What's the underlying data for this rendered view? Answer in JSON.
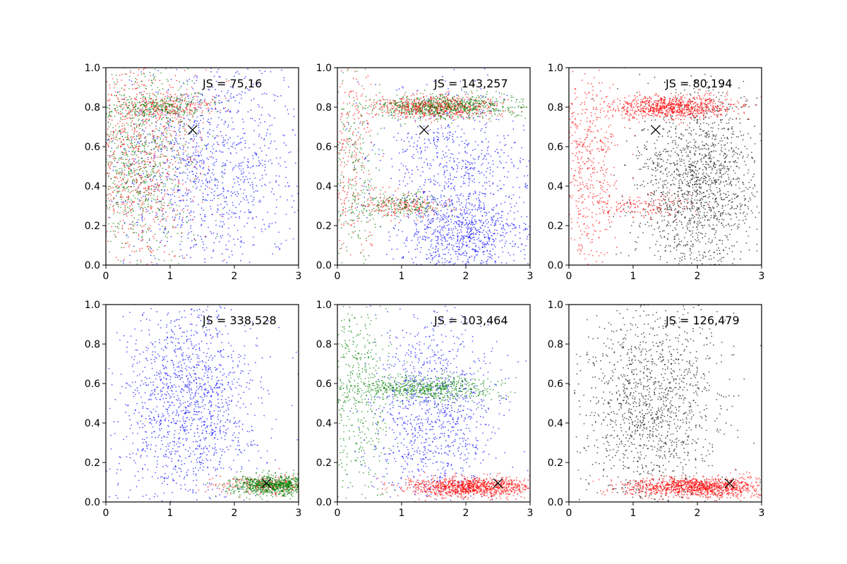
{
  "chart_data": [
    {
      "type": "scatter",
      "annotation": "JS = 75,16",
      "xlim": [
        0,
        3
      ],
      "ylim": [
        0,
        1
      ],
      "xticks": [
        "0",
        "1",
        "2",
        "3"
      ],
      "yticks": [
        "0.0",
        "0.2",
        "0.4",
        "0.6",
        "0.8",
        "1.0"
      ],
      "grid": false,
      "marker": {
        "x": 1.35,
        "y": 0.685,
        "shape": "x"
      },
      "series": [
        {
          "color": "#0000ff",
          "clusters": [
            {
              "cx": 1.6,
              "cy": 0.5,
              "sx": 0.75,
              "sy": 0.28,
              "n": 1300
            }
          ]
        },
        {
          "color": "#ff0000",
          "clusters": [
            {
              "cx": 0.5,
              "cy": 0.55,
              "sx": 0.45,
              "sy": 0.27,
              "n": 900
            },
            {
              "cx": 0.9,
              "cy": 0.8,
              "sx": 0.4,
              "sy": 0.03,
              "n": 250
            }
          ]
        },
        {
          "color": "#008000",
          "clusters": [
            {
              "cx": 0.5,
              "cy": 0.55,
              "sx": 0.45,
              "sy": 0.27,
              "n": 900
            },
            {
              "cx": 0.9,
              "cy": 0.8,
              "sx": 0.4,
              "sy": 0.03,
              "n": 250
            }
          ]
        }
      ]
    },
    {
      "type": "scatter",
      "annotation": "JS = 143,257",
      "xlim": [
        0,
        3
      ],
      "ylim": [
        0,
        1
      ],
      "xticks": [
        "0",
        "1",
        "2",
        "3"
      ],
      "yticks": [
        "0.0",
        "0.2",
        "0.4",
        "0.6",
        "0.8",
        "1.0"
      ],
      "grid": false,
      "marker": {
        "x": 1.35,
        "y": 0.685,
        "shape": "x"
      },
      "series": [
        {
          "color": "#0000ff",
          "clusters": [
            {
              "cx": 2.0,
              "cy": 0.15,
              "sx": 0.5,
              "sy": 0.1,
              "n": 800
            },
            {
              "cx": 1.8,
              "cy": 0.5,
              "sx": 0.65,
              "sy": 0.2,
              "n": 700
            }
          ]
        },
        {
          "color": "#ff0000",
          "clusters": [
            {
              "cx": 1.5,
              "cy": 0.8,
              "sx": 0.5,
              "sy": 0.03,
              "n": 700
            },
            {
              "cx": 1.0,
              "cy": 0.3,
              "sx": 0.35,
              "sy": 0.03,
              "n": 200
            },
            {
              "cx": 0.2,
              "cy": 0.5,
              "sx": 0.18,
              "sy": 0.28,
              "n": 250
            }
          ]
        },
        {
          "color": "#008000",
          "clusters": [
            {
              "cx": 1.7,
              "cy": 0.8,
              "sx": 0.6,
              "sy": 0.03,
              "n": 700
            },
            {
              "cx": 1.0,
              "cy": 0.3,
              "sx": 0.35,
              "sy": 0.03,
              "n": 200
            },
            {
              "cx": 0.25,
              "cy": 0.5,
              "sx": 0.2,
              "sy": 0.28,
              "n": 250
            }
          ]
        }
      ]
    },
    {
      "type": "scatter",
      "annotation": "JS = 80,194",
      "xlim": [
        0,
        3
      ],
      "ylim": [
        0,
        1
      ],
      "xticks": [
        "0",
        "1",
        "2",
        "3"
      ],
      "yticks": [
        "0.0",
        "0.2",
        "0.4",
        "0.6",
        "0.8",
        "1.0"
      ],
      "grid": false,
      "marker": {
        "x": 1.35,
        "y": 0.685,
        "shape": "x"
      },
      "series": [
        {
          "color": "#000000",
          "clusters": [
            {
              "cx": 2.0,
              "cy": 0.4,
              "sx": 0.5,
              "sy": 0.25,
              "n": 1600
            }
          ]
        },
        {
          "color": "#ff0000",
          "clusters": [
            {
              "cx": 1.6,
              "cy": 0.8,
              "sx": 0.45,
              "sy": 0.03,
              "n": 900
            },
            {
              "cx": 0.3,
              "cy": 0.5,
              "sx": 0.25,
              "sy": 0.28,
              "n": 550
            },
            {
              "cx": 1.2,
              "cy": 0.3,
              "sx": 0.35,
              "sy": 0.03,
              "n": 150
            }
          ]
        }
      ]
    },
    {
      "type": "scatter",
      "annotation": "JS = 338,528",
      "xlim": [
        0,
        3
      ],
      "ylim": [
        0,
        1
      ],
      "xticks": [
        "0",
        "1",
        "2",
        "3"
      ],
      "yticks": [
        "0.0",
        "0.2",
        "0.4",
        "0.6",
        "0.8",
        "1.0"
      ],
      "grid": false,
      "marker": {
        "x": 2.5,
        "y": 0.095,
        "shape": "x"
      },
      "series": [
        {
          "color": "#0000ff",
          "clusters": [
            {
              "cx": 1.3,
              "cy": 0.5,
              "sx": 0.55,
              "sy": 0.27,
              "n": 1500
            }
          ]
        },
        {
          "color": "#ff0000",
          "clusters": [
            {
              "cx": 2.5,
              "cy": 0.085,
              "sx": 0.4,
              "sy": 0.025,
              "n": 250
            }
          ]
        },
        {
          "color": "#008000",
          "clusters": [
            {
              "cx": 2.6,
              "cy": 0.085,
              "sx": 0.35,
              "sy": 0.025,
              "n": 900
            }
          ]
        }
      ]
    },
    {
      "type": "scatter",
      "annotation": "JS = 103,464",
      "xlim": [
        0,
        3
      ],
      "ylim": [
        0,
        1
      ],
      "xticks": [
        "0",
        "1",
        "2",
        "3"
      ],
      "yticks": [
        "0.0",
        "0.2",
        "0.4",
        "0.6",
        "0.8",
        "1.0"
      ],
      "grid": false,
      "marker": {
        "x": 2.5,
        "y": 0.095,
        "shape": "x"
      },
      "series": [
        {
          "color": "#0000ff",
          "clusters": [
            {
              "cx": 1.5,
              "cy": 0.45,
              "sx": 0.5,
              "sy": 0.25,
              "n": 1100
            }
          ]
        },
        {
          "color": "#008000",
          "clusters": [
            {
              "cx": 1.4,
              "cy": 0.575,
              "sx": 0.55,
              "sy": 0.03,
              "n": 650
            },
            {
              "cx": 0.3,
              "cy": 0.55,
              "sx": 0.25,
              "sy": 0.27,
              "n": 500
            }
          ]
        },
        {
          "color": "#ff0000",
          "clusters": [
            {
              "cx": 2.1,
              "cy": 0.075,
              "sx": 0.5,
              "sy": 0.025,
              "n": 1100
            }
          ]
        }
      ]
    },
    {
      "type": "scatter",
      "annotation": "JS = 126,479",
      "xlim": [
        0,
        3
      ],
      "ylim": [
        0,
        1
      ],
      "xticks": [
        "0",
        "1",
        "2",
        "3"
      ],
      "yticks": [
        "0.0",
        "0.2",
        "0.4",
        "0.6",
        "0.8",
        "1.0"
      ],
      "grid": false,
      "marker": {
        "x": 2.5,
        "y": 0.095,
        "shape": "x"
      },
      "series": [
        {
          "color": "#000000",
          "clusters": [
            {
              "cx": 1.3,
              "cy": 0.5,
              "sx": 0.55,
              "sy": 0.27,
              "n": 1400
            }
          ]
        },
        {
          "color": "#ff0000",
          "clusters": [
            {
              "cx": 2.0,
              "cy": 0.075,
              "sx": 0.55,
              "sy": 0.025,
              "n": 1200
            }
          ]
        }
      ]
    }
  ]
}
